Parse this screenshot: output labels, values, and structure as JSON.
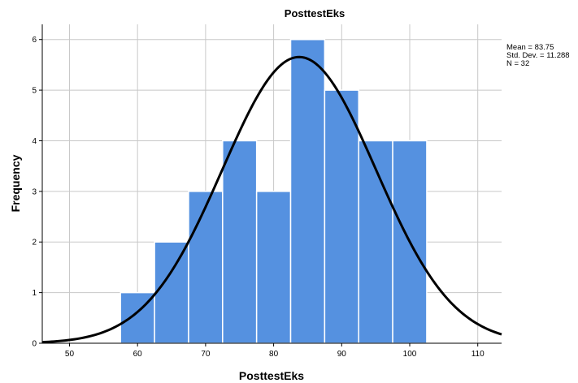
{
  "chart_data": {
    "type": "histogram",
    "title": "PosttestEks",
    "xlabel": "PosttestEks",
    "ylabel": "Frequency",
    "xlim": [
      46,
      113.5
    ],
    "ylim": [
      0,
      6.3
    ],
    "x_ticks": [
      "50",
      "60",
      "70",
      "80",
      "90",
      "100",
      "110"
    ],
    "y_ticks": [
      "0",
      "1",
      "2",
      "3",
      "4",
      "5",
      "6"
    ],
    "grid": "major gridlines on both axes",
    "bar_color": "#5591e0",
    "bins": [
      {
        "start": 57.5,
        "end": 62.5,
        "count": 1
      },
      {
        "start": 62.5,
        "end": 67.5,
        "count": 2
      },
      {
        "start": 67.5,
        "end": 72.5,
        "count": 3
      },
      {
        "start": 72.5,
        "end": 77.5,
        "count": 4
      },
      {
        "start": 77.5,
        "end": 82.5,
        "count": 3
      },
      {
        "start": 82.5,
        "end": 87.5,
        "count": 6
      },
      {
        "start": 87.5,
        "end": 92.5,
        "count": 5
      },
      {
        "start": 92.5,
        "end": 97.5,
        "count": 4
      },
      {
        "start": 97.5,
        "end": 102.5,
        "count": 4
      }
    ],
    "normal_curve": {
      "mean": 83.75,
      "std_dev": 11.288,
      "n": 32,
      "bin_width": 5,
      "color": "#000000"
    },
    "stats_box": {
      "placement": "top-right",
      "lines": [
        "Mean = 83.75",
        "Std. Dev. = 11.288",
        "N = 32"
      ]
    }
  }
}
